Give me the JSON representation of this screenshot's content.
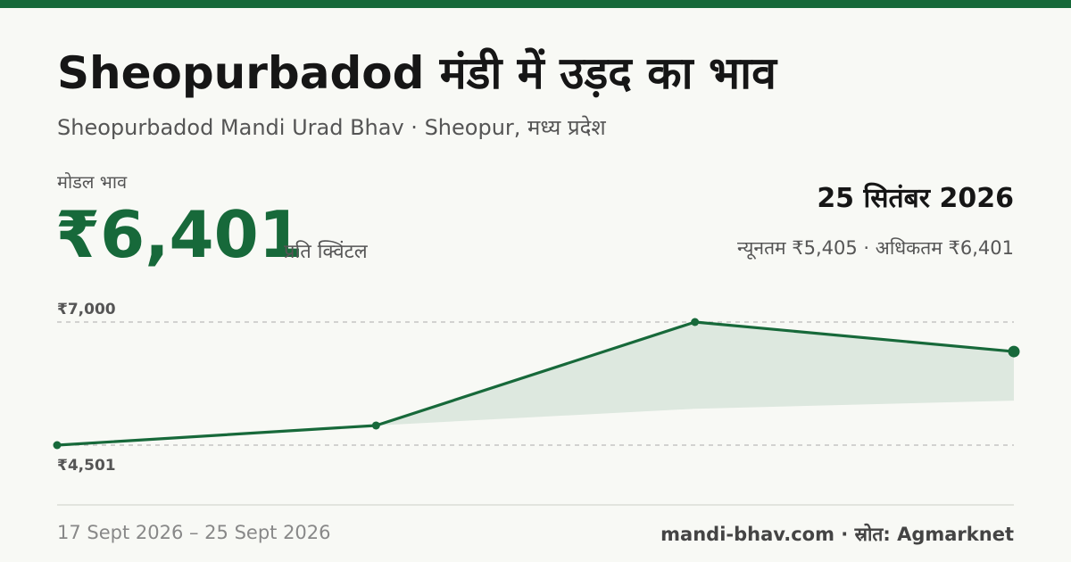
{
  "header": {
    "title": "Sheopurbadod मंडी में उड़द का भाव",
    "subtitle": "Sheopurbadod Mandi Urad Bhav · Sheopur, मध्य प्रदेश"
  },
  "summary": {
    "modal_label": "मोडल भाव",
    "modal_price": "₹6,401",
    "unit": "प्रति क्विंटल",
    "date": "25 सितंबर 2026",
    "min_max": "न्यूनतम ₹5,405 · अधिकतम ₹6,401"
  },
  "footer": {
    "date_range": "17 Sept 2026 – 25 Sept 2026",
    "source": "mandi-bhav.com · स्रोत: Agmarknet"
  },
  "colors": {
    "accent": "#17693a",
    "band": "#dde8df"
  },
  "chart_data": {
    "type": "line",
    "y_ticks": [
      {
        "value": 7000,
        "label": "₹7,000"
      },
      {
        "value": 4501,
        "label": "₹4,501"
      }
    ],
    "ylim": [
      4501,
      7000
    ],
    "x_index": [
      0,
      1,
      2,
      3
    ],
    "series": [
      {
        "values": [
          4501,
          4900,
          7000,
          6401
        ]
      }
    ],
    "band_lower": [
      null,
      4900,
      5240,
      5405
    ]
  }
}
